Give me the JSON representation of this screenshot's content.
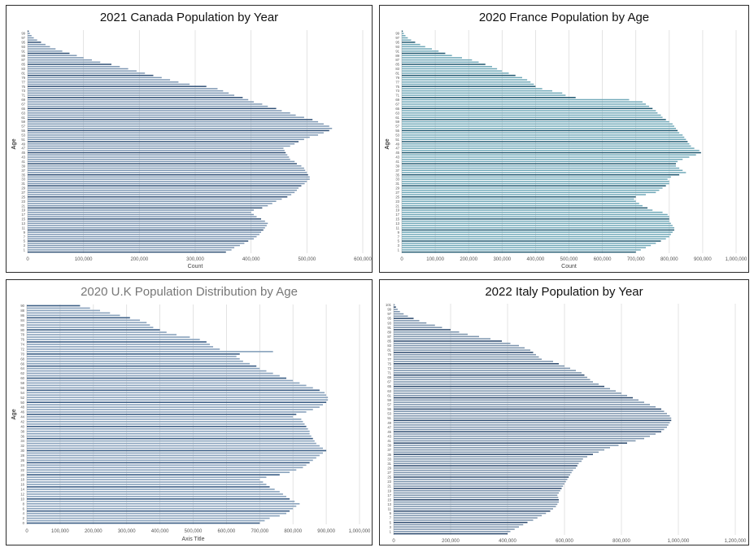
{
  "chart_data": [
    {
      "type": "bar",
      "orientation": "horizontal",
      "title": "2021 Canada Population by Year",
      "xlabel": "Count",
      "ylabel": "Age",
      "xlim": [
        0,
        600000
      ],
      "x_ticks": [
        "0",
        "100,000",
        "200,000",
        "300,000",
        "400,000",
        "500,000",
        "600,000"
      ],
      "y_tick_labels": [
        "1",
        "3",
        "5",
        "7",
        "9",
        "11",
        "13",
        "15",
        "17",
        "19",
        "21",
        "23",
        "25",
        "27",
        "29",
        "31",
        "33",
        "35",
        "37",
        "39",
        "41",
        "43",
        "45",
        "47",
        "49",
        "51",
        "53",
        "55",
        "57",
        "59",
        "61",
        "63",
        "65",
        "67",
        "69",
        "71",
        "73",
        "75",
        "77",
        "79",
        "81",
        "83",
        "85",
        "87",
        "89",
        "91",
        "93",
        "95",
        "97",
        "99"
      ],
      "grid": true,
      "legend": "none",
      "categories": [
        "0",
        "1",
        "2",
        "3",
        "4",
        "5",
        "6",
        "7",
        "8",
        "9",
        "10",
        "11",
        "12",
        "13",
        "14",
        "15",
        "16",
        "17",
        "18",
        "19",
        "20",
        "21",
        "22",
        "23",
        "24",
        "25",
        "26",
        "27",
        "28",
        "29",
        "30",
        "31",
        "32",
        "33",
        "34",
        "35",
        "36",
        "37",
        "38",
        "39",
        "40",
        "41",
        "42",
        "43",
        "44",
        "45",
        "46",
        "47",
        "48",
        "49",
        "50",
        "51",
        "52",
        "53",
        "54",
        "55",
        "56",
        "57",
        "58",
        "59",
        "60",
        "61",
        "62",
        "63",
        "64",
        "65",
        "66",
        "67",
        "68",
        "69",
        "70",
        "71",
        "72",
        "73",
        "74",
        "75",
        "76",
        "77",
        "78",
        "79",
        "80",
        "81",
        "82",
        "83",
        "84",
        "85",
        "86",
        "87",
        "88",
        "89",
        "90",
        "91",
        "92",
        "93",
        "94",
        "95",
        "96",
        "97",
        "98",
        "99",
        "100"
      ],
      "values": [
        355000,
        365000,
        370000,
        380000,
        388000,
        395000,
        405000,
        410000,
        415000,
        418000,
        422000,
        425000,
        428000,
        430000,
        425000,
        418000,
        410000,
        405000,
        400000,
        405000,
        420000,
        430000,
        438000,
        445000,
        455000,
        465000,
        472000,
        478000,
        482000,
        485000,
        490000,
        496000,
        500000,
        505000,
        505000,
        502000,
        500000,
        497000,
        495000,
        490000,
        482000,
        478000,
        470000,
        468000,
        465000,
        462000,
        460000,
        458000,
        470000,
        478000,
        485000,
        495000,
        505000,
        520000,
        530000,
        540000,
        545000,
        540000,
        530000,
        520000,
        510000,
        495000,
        480000,
        470000,
        455000,
        445000,
        430000,
        420000,
        405000,
        395000,
        385000,
        370000,
        360000,
        350000,
        340000,
        320000,
        290000,
        270000,
        255000,
        240000,
        225000,
        210000,
        195000,
        180000,
        165000,
        150000,
        130000,
        115000,
        100000,
        88000,
        75000,
        62000,
        50000,
        40000,
        32000,
        24000,
        17000,
        11000,
        7000,
        4000,
        2000
      ],
      "color": "#7d97b3",
      "dark_color": "#2f4f75"
    },
    {
      "type": "bar",
      "orientation": "horizontal",
      "title": "2020 France Population by Age",
      "xlabel": "Count",
      "ylabel": "Age",
      "xlim": [
        0,
        1000000
      ],
      "x_ticks": [
        "0",
        "100,000",
        "200,000",
        "300,000",
        "400,000",
        "500,000",
        "600,000",
        "700,000",
        "800,000",
        "900,000",
        "1,000,000"
      ],
      "y_tick_labels": [
        "1",
        "3",
        "5",
        "7",
        "9",
        "11",
        "13",
        "15",
        "17",
        "19",
        "21",
        "23",
        "25",
        "27",
        "29",
        "31",
        "33",
        "35",
        "37",
        "39",
        "41",
        "43",
        "45",
        "47",
        "49",
        "51",
        "53",
        "55",
        "57",
        "59",
        "61",
        "63",
        "65",
        "67",
        "69",
        "71",
        "73",
        "75",
        "77",
        "79",
        "81",
        "83",
        "85",
        "87",
        "89",
        "91",
        "93",
        "95",
        "97",
        "99"
      ],
      "grid": true,
      "legend": "none",
      "categories": [
        "0",
        "1",
        "2",
        "3",
        "4",
        "5",
        "6",
        "7",
        "8",
        "9",
        "10",
        "11",
        "12",
        "13",
        "14",
        "15",
        "16",
        "17",
        "18",
        "19",
        "20",
        "21",
        "22",
        "23",
        "24",
        "25",
        "26",
        "27",
        "28",
        "29",
        "30",
        "31",
        "32",
        "33",
        "34",
        "35",
        "36",
        "37",
        "38",
        "39",
        "40",
        "41",
        "42",
        "43",
        "44",
        "45",
        "46",
        "47",
        "48",
        "49",
        "50",
        "51",
        "52",
        "53",
        "54",
        "55",
        "56",
        "57",
        "58",
        "59",
        "60",
        "61",
        "62",
        "63",
        "64",
        "65",
        "66",
        "67",
        "68",
        "69",
        "70",
        "71",
        "72",
        "73",
        "74",
        "75",
        "76",
        "77",
        "78",
        "79",
        "80",
        "81",
        "82",
        "83",
        "84",
        "85",
        "86",
        "87",
        "88",
        "89",
        "90",
        "91",
        "92",
        "93",
        "94",
        "95",
        "96",
        "97",
        "98",
        "99",
        "100"
      ],
      "values": [
        700000,
        715000,
        730000,
        745000,
        760000,
        775000,
        790000,
        800000,
        805000,
        810000,
        815000,
        815000,
        810000,
        805000,
        800000,
        800000,
        800000,
        795000,
        780000,
        750000,
        735000,
        720000,
        710000,
        700000,
        695000,
        700000,
        730000,
        760000,
        770000,
        780000,
        790000,
        800000,
        800000,
        795000,
        805000,
        830000,
        850000,
        840000,
        830000,
        820000,
        820000,
        825000,
        840000,
        860000,
        880000,
        895000,
        890000,
        875000,
        865000,
        860000,
        855000,
        850000,
        845000,
        840000,
        830000,
        825000,
        820000,
        815000,
        810000,
        800000,
        790000,
        780000,
        775000,
        765000,
        760000,
        750000,
        740000,
        730000,
        720000,
        680000,
        520000,
        490000,
        480000,
        450000,
        420000,
        400000,
        395000,
        385000,
        375000,
        360000,
        340000,
        320000,
        300000,
        285000,
        270000,
        250000,
        230000,
        210000,
        180000,
        150000,
        130000,
        110000,
        90000,
        70000,
        55000,
        40000,
        28000,
        18000,
        11000,
        6000,
        3000
      ],
      "color": "#6fa8b8",
      "dark_color": "#1f5870"
    },
    {
      "type": "bar",
      "orientation": "horizontal",
      "title": "2020 U.K Population Distribution by Age",
      "xlabel": "Axis Title",
      "ylabel": "Age",
      "xlim": [
        0,
        1000000
      ],
      "x_ticks": [
        "0",
        "100,000",
        "200,000",
        "300,000",
        "400,000",
        "500,000",
        "600,000",
        "700,000",
        "800,000",
        "900,000",
        "1,000,000"
      ],
      "y_tick_labels": [
        "0",
        "2",
        "4",
        "6",
        "8",
        "10",
        "12",
        "14",
        "16",
        "18",
        "20",
        "22",
        "24",
        "26",
        "28",
        "30",
        "32",
        "34",
        "36",
        "38",
        "40",
        "42",
        "44",
        "46",
        "48",
        "50",
        "52",
        "54",
        "56",
        "58",
        "60",
        "62",
        "64",
        "66",
        "68",
        "70",
        "72",
        "74",
        "76",
        "78",
        "80",
        "82",
        "84",
        "86",
        "88",
        "90"
      ],
      "grid": true,
      "legend": "none",
      "categories": [
        "0",
        "1",
        "2",
        "3",
        "4",
        "5",
        "6",
        "7",
        "8",
        "9",
        "10",
        "11",
        "12",
        "13",
        "14",
        "15",
        "16",
        "17",
        "18",
        "19",
        "20",
        "21",
        "22",
        "23",
        "24",
        "25",
        "26",
        "27",
        "28",
        "29",
        "30",
        "31",
        "32",
        "33",
        "34",
        "35",
        "36",
        "37",
        "38",
        "39",
        "40",
        "41",
        "42",
        "43",
        "44",
        "45",
        "46",
        "47",
        "48",
        "49",
        "50",
        "51",
        "52",
        "53",
        "54",
        "55",
        "56",
        "57",
        "58",
        "59",
        "60",
        "61",
        "62",
        "63",
        "64",
        "65",
        "66",
        "67",
        "68",
        "69",
        "70",
        "71",
        "72",
        "73",
        "74",
        "75",
        "76",
        "77",
        "78",
        "79",
        "80",
        "81",
        "82",
        "83",
        "84",
        "85",
        "86",
        "87",
        "88",
        "89",
        "90"
      ],
      "values": [
        700000,
        715000,
        730000,
        760000,
        780000,
        790000,
        800000,
        810000,
        820000,
        805000,
        790000,
        780000,
        770000,
        760000,
        745000,
        730000,
        720000,
        710000,
        700000,
        720000,
        760000,
        790000,
        810000,
        830000,
        840000,
        850000,
        860000,
        870000,
        880000,
        890000,
        900000,
        890000,
        880000,
        870000,
        865000,
        860000,
        855000,
        850000,
        850000,
        845000,
        840000,
        835000,
        830000,
        825000,
        800000,
        810000,
        840000,
        860000,
        880000,
        890000,
        900000,
        905000,
        905000,
        900000,
        895000,
        880000,
        860000,
        840000,
        820000,
        800000,
        780000,
        760000,
        740000,
        720000,
        700000,
        690000,
        670000,
        650000,
        640000,
        630000,
        640000,
        740000,
        580000,
        560000,
        550000,
        540000,
        520000,
        490000,
        450000,
        420000,
        400000,
        380000,
        370000,
        360000,
        340000,
        310000,
        280000,
        250000,
        220000,
        190000,
        160000
      ],
      "color": "#8aa3bd",
      "dark_color": "#3d5f86"
    },
    {
      "type": "bar",
      "orientation": "horizontal",
      "title": "2022 Italy Population by Year",
      "xlabel": "",
      "ylabel": "",
      "xlim": [
        0,
        1200000
      ],
      "x_ticks": [
        "0",
        "200,000",
        "400,000",
        "600,000",
        "800,000",
        "1,000,000",
        "1,200,000"
      ],
      "y_tick_labels": [
        "1",
        "3",
        "5",
        "7",
        "9",
        "11",
        "13",
        "15",
        "17",
        "19",
        "21",
        "23",
        "25",
        "27",
        "29",
        "31",
        "33",
        "35",
        "37",
        "39",
        "41",
        "43",
        "45",
        "47",
        "49",
        "51",
        "53",
        "55",
        "57",
        "59",
        "61",
        "63",
        "65",
        "67",
        "69",
        "71",
        "73",
        "75",
        "77",
        "79",
        "81",
        "83",
        "85",
        "87",
        "89",
        "91",
        "93",
        "95",
        "97",
        "99",
        "101"
      ],
      "grid": true,
      "legend": "none",
      "categories": [
        "0",
        "1",
        "2",
        "3",
        "4",
        "5",
        "6",
        "7",
        "8",
        "9",
        "10",
        "11",
        "12",
        "13",
        "14",
        "15",
        "16",
        "17",
        "18",
        "19",
        "20",
        "21",
        "22",
        "23",
        "24",
        "25",
        "26",
        "27",
        "28",
        "29",
        "30",
        "31",
        "32",
        "33",
        "34",
        "35",
        "36",
        "37",
        "38",
        "39",
        "40",
        "41",
        "42",
        "43",
        "44",
        "45",
        "46",
        "47",
        "48",
        "49",
        "50",
        "51",
        "52",
        "53",
        "54",
        "55",
        "56",
        "57",
        "58",
        "59",
        "60",
        "61",
        "62",
        "63",
        "64",
        "65",
        "66",
        "67",
        "68",
        "69",
        "70",
        "71",
        "72",
        "73",
        "74",
        "75",
        "76",
        "77",
        "78",
        "79",
        "80",
        "81",
        "82",
        "83",
        "84",
        "85",
        "86",
        "87",
        "88",
        "89",
        "90",
        "91",
        "92",
        "93",
        "94",
        "95",
        "96",
        "97",
        "98",
        "99",
        "100",
        "101"
      ],
      "values": [
        400000,
        410000,
        425000,
        440000,
        455000,
        470000,
        490000,
        505000,
        520000,
        535000,
        550000,
        560000,
        570000,
        575000,
        580000,
        580000,
        578000,
        575000,
        580000,
        585000,
        590000,
        595000,
        600000,
        605000,
        610000,
        615000,
        620000,
        625000,
        630000,
        640000,
        645000,
        650000,
        660000,
        665000,
        680000,
        700000,
        720000,
        740000,
        760000,
        790000,
        820000,
        850000,
        880000,
        900000,
        920000,
        940000,
        950000,
        960000,
        965000,
        970000,
        975000,
        975000,
        970000,
        960000,
        950000,
        940000,
        920000,
        900000,
        880000,
        860000,
        840000,
        820000,
        800000,
        780000,
        760000,
        740000,
        720000,
        700000,
        690000,
        680000,
        670000,
        660000,
        640000,
        620000,
        600000,
        580000,
        560000,
        520000,
        510000,
        500000,
        490000,
        480000,
        460000,
        440000,
        410000,
        380000,
        340000,
        300000,
        260000,
        230000,
        200000,
        170000,
        145000,
        115000,
        90000,
        70000,
        50000,
        35000,
        22000,
        14000,
        8000,
        4000
      ],
      "color": "#7c94ad",
      "dark_color": "#2c4a6e"
    }
  ]
}
